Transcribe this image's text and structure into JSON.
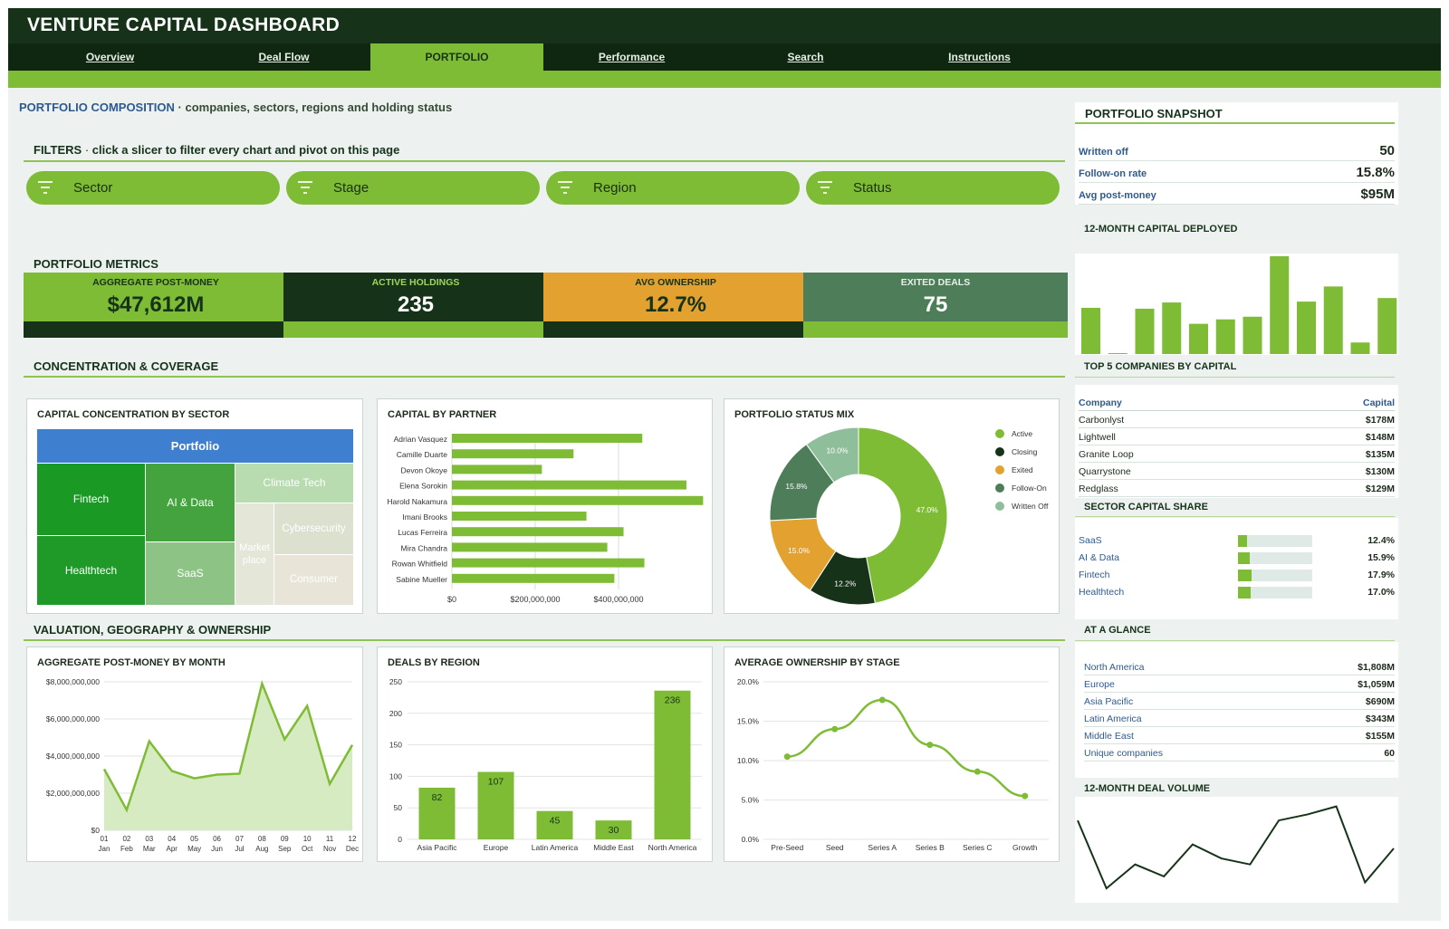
{
  "app": {
    "title": "VENTURE CAPITAL DASHBOARD"
  },
  "tabs": [
    {
      "label": "Overview",
      "active": false
    },
    {
      "label": "Deal Flow",
      "active": false
    },
    {
      "label": "PORTFOLIO",
      "active": true
    },
    {
      "label": "Performance",
      "active": false
    },
    {
      "label": "Search",
      "active": false
    },
    {
      "label": "Instructions",
      "active": false
    }
  ],
  "composition": {
    "title": "PORTFOLIO COMPOSITION",
    "subtitle": "companies, sectors, regions and holding status"
  },
  "filters": {
    "label": "FILTERS",
    "hint": "click a slicer to filter every chart and pivot on this page",
    "slicers": [
      {
        "label": "Sector"
      },
      {
        "label": "Stage"
      },
      {
        "label": "Region"
      },
      {
        "label": "Status"
      }
    ]
  },
  "metrics": {
    "header": "PORTFOLIO METRICS",
    "items": [
      {
        "label": "AGGREGATE POST-MONEY",
        "value": "$47,612M"
      },
      {
        "label": "ACTIVE HOLDINGS",
        "value": "235"
      },
      {
        "label": "AVG OWNERSHIP",
        "value": "12.7%"
      },
      {
        "label": "EXITED DEALS",
        "value": "75"
      }
    ]
  },
  "sections": {
    "concentration": "CONCENTRATION & COVERAGE",
    "valuation": "VALUATION, GEOGRAPHY & OWNERSHIP"
  },
  "colors": {
    "accent": "#7fbc35",
    "dark": "#163319",
    "orange": "#e3a12f",
    "teal": "#4e7d5a"
  },
  "treemap": {
    "title": "CAPITAL CONCENTRATION BY SECTOR",
    "root": "Portfolio",
    "cells": [
      {
        "label": "Fintech"
      },
      {
        "label": "AI & Data"
      },
      {
        "label": "Climate Tech"
      },
      {
        "label": "Healthtech"
      },
      {
        "label": "SaaS"
      },
      {
        "label": "Market place"
      },
      {
        "label": "Cybersecurity"
      },
      {
        "label": "Consumer"
      }
    ]
  },
  "partner_chart": {
    "title": "CAPITAL BY PARTNER"
  },
  "status_chart": {
    "title": "PORTFOLIO STATUS MIX"
  },
  "postmoney_chart": {
    "title": "AGGREGATE POST-MONEY BY MONTH"
  },
  "region_chart": {
    "title": "DEALS BY REGION"
  },
  "ownership_chart": {
    "title": "AVERAGE OWNERSHIP BY STAGE"
  },
  "snapshot": {
    "title": "PORTFOLIO SNAPSHOT",
    "rows": [
      {
        "label": "Written off",
        "value": "50"
      },
      {
        "label": "Follow-on rate",
        "value": "15.8%"
      },
      {
        "label": "Avg post-money",
        "value": "$95M"
      }
    ]
  },
  "capital_deployed": {
    "title": "12-MONTH CAPITAL DEPLOYED"
  },
  "top5": {
    "title": "TOP 5 COMPANIES BY CAPITAL",
    "col_company": "Company",
    "col_capital": "Capital",
    "rows": [
      {
        "company": "Carbonlyst",
        "capital": "$178M"
      },
      {
        "company": "Lightwell",
        "capital": "$148M"
      },
      {
        "company": "Granite Loop",
        "capital": "$135M"
      },
      {
        "company": "Quarrystone",
        "capital": "$130M"
      },
      {
        "company": "Redglass",
        "capital": "$129M"
      }
    ]
  },
  "sector_share": {
    "title": "SECTOR CAPITAL SHARE",
    "rows": [
      {
        "label": "SaaS",
        "value": "12.4%",
        "pct": 12.4
      },
      {
        "label": "AI & Data",
        "value": "15.9%",
        "pct": 15.9
      },
      {
        "label": "Fintech",
        "value": "17.9%",
        "pct": 17.9
      },
      {
        "label": "Healthtech",
        "value": "17.0%",
        "pct": 17.0
      }
    ]
  },
  "glance": {
    "title": "AT A GLANCE",
    "rows": [
      {
        "label": "North America",
        "value": "$1,808M"
      },
      {
        "label": "Europe",
        "value": "$1,059M"
      },
      {
        "label": "Asia Pacific",
        "value": "$690M"
      },
      {
        "label": "Latin America",
        "value": "$343M"
      },
      {
        "label": "Middle East",
        "value": "$155M"
      },
      {
        "label": "Unique companies",
        "value": "60"
      }
    ]
  },
  "deal_volume": {
    "title": "12-MONTH DEAL VOLUME"
  },
  "chart_data": [
    {
      "id": "partner",
      "type": "bar",
      "orientation": "horizontal",
      "title": "CAPITAL BY PARTNER",
      "categories": [
        "Adrian Vasquez",
        "Camille Duarte",
        "Devon Okoye",
        "Elena Sorokin",
        "Harold Nakamura",
        "Imani Brooks",
        "Lucas Ferreira",
        "Mira Chandra",
        "Rowan Whitfield",
        "Sabine Mueller"
      ],
      "values": [
        457000000,
        292000000,
        216000000,
        563000000,
        603000000,
        323000000,
        412000000,
        373000000,
        462000000,
        390000000
      ],
      "xticks": [
        "$0",
        "$200,000,000",
        "$400,000,000"
      ],
      "xlim": [
        0,
        600000000
      ]
    },
    {
      "id": "status",
      "type": "pie",
      "donut": true,
      "title": "PORTFOLIO STATUS MIX",
      "labels": [
        "Active",
        "Closing",
        "Exited",
        "Follow-On",
        "Written Off"
      ],
      "values": [
        47.0,
        12.2,
        15.0,
        15.8,
        10.0
      ],
      "value_labels": [
        "47.0%",
        "12.2%",
        "15.0%",
        "15.8%",
        "10.0%"
      ],
      "colors": [
        "#7fbc35",
        "#163319",
        "#e3a12f",
        "#4e7d5a",
        "#8fbf9a"
      ],
      "legend": "right"
    },
    {
      "id": "postmoney",
      "type": "area",
      "title": "AGGREGATE POST-MONEY BY MONTH",
      "x": [
        "01",
        "02",
        "03",
        "04",
        "05",
        "06",
        "07",
        "08",
        "09",
        "10",
        "11",
        "12"
      ],
      "x_sub": [
        "Jan",
        "Feb",
        "Mar",
        "Apr",
        "May",
        "Jun",
        "Jul",
        "Aug",
        "Sep",
        "Oct",
        "Nov",
        "Dec"
      ],
      "values": [
        3300000000,
        1100000000,
        4800000000,
        3200000000,
        2800000000,
        3000000000,
        3050000000,
        7900000000,
        4900000000,
        6700000000,
        2500000000,
        4600000000
      ],
      "yticks": [
        "$0",
        "$2,000,000,000",
        "$4,000,000,000",
        "$6,000,000,000",
        "$8,000,000,000"
      ],
      "ylim": [
        0,
        8000000000
      ]
    },
    {
      "id": "region",
      "type": "bar",
      "title": "DEALS BY REGION",
      "categories": [
        "Asia Pacific",
        "Europe",
        "Latin America",
        "Middle East",
        "North America"
      ],
      "values": [
        82,
        107,
        45,
        30,
        236
      ],
      "yticks": [
        "0",
        "50",
        "100",
        "150",
        "200",
        "250"
      ],
      "ylim": [
        0,
        250
      ]
    },
    {
      "id": "ownership",
      "type": "line",
      "title": "AVERAGE OWNERSHIP BY STAGE",
      "categories": [
        "Pre-Seed",
        "Seed",
        "Series A",
        "Series B",
        "Series C",
        "Growth"
      ],
      "values": [
        10.5,
        14.0,
        17.7,
        12.0,
        8.6,
        5.5
      ],
      "yticks": [
        "0.0%",
        "5.0%",
        "10.0%",
        "15.0%",
        "20.0%"
      ],
      "ylim": [
        0,
        20
      ]
    },
    {
      "id": "deployed",
      "type": "bar",
      "title": "12-MONTH CAPITAL DEPLOYED",
      "values": [
        52,
        1,
        51,
        58,
        34,
        39,
        42,
        110,
        59,
        76,
        13,
        63
      ]
    },
    {
      "id": "dealvolume",
      "type": "line",
      "title": "12-MONTH DEAL VOLUME",
      "values": [
        48,
        14,
        26,
        20,
        36,
        29,
        26,
        48,
        51,
        55,
        17,
        34
      ]
    }
  ]
}
